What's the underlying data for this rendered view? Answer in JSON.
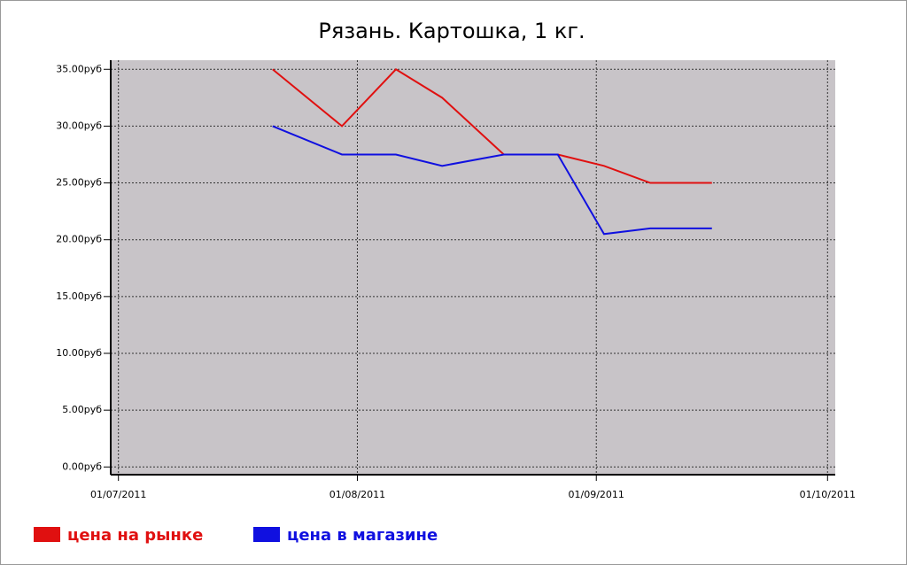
{
  "chart_data": {
    "type": "line",
    "title": "Рязань. Картошка, 1 кг.",
    "x": [
      "2011-07-21",
      "2011-07-30",
      "2011-08-06",
      "2011-08-12",
      "2011-08-20",
      "2011-08-27",
      "2011-09-02",
      "2011-09-08",
      "2011-09-16"
    ],
    "series": [
      {
        "name": "цена на рынке",
        "color": "#e01010",
        "values": [
          35,
          30,
          35,
          32.5,
          27.5,
          27.5,
          26.5,
          25,
          25
        ]
      },
      {
        "name": "цена в магазине",
        "color": "#1010e0",
        "values": [
          30,
          27.5,
          27.5,
          26.5,
          27.5,
          27.5,
          20.5,
          21,
          21
        ]
      }
    ],
    "xlim": [
      "2011-06-30",
      "2011-10-02"
    ],
    "xticks": [
      {
        "value": "2011-07-01",
        "label": "01/07/2011"
      },
      {
        "value": "2011-08-01",
        "label": "01/08/2011"
      },
      {
        "value": "2011-09-01",
        "label": "01/09/2011"
      },
      {
        "value": "2011-10-01",
        "label": "01/10/2011"
      }
    ],
    "ylim": [
      -0.6,
      35.8
    ],
    "yticks": [
      {
        "value": 0,
        "label": "0.00руб"
      },
      {
        "value": 5,
        "label": "5.00руб"
      },
      {
        "value": 10,
        "label": "10.00руб"
      },
      {
        "value": 15,
        "label": "15.00руб"
      },
      {
        "value": 20,
        "label": "20.00руб"
      },
      {
        "value": 25,
        "label": "25.00руб"
      },
      {
        "value": 30,
        "label": "30.00руб"
      },
      {
        "value": 35,
        "label": "35.00руб"
      }
    ],
    "grid": true,
    "legend": "bottom-left",
    "plot_background": "#c8c4c8"
  }
}
